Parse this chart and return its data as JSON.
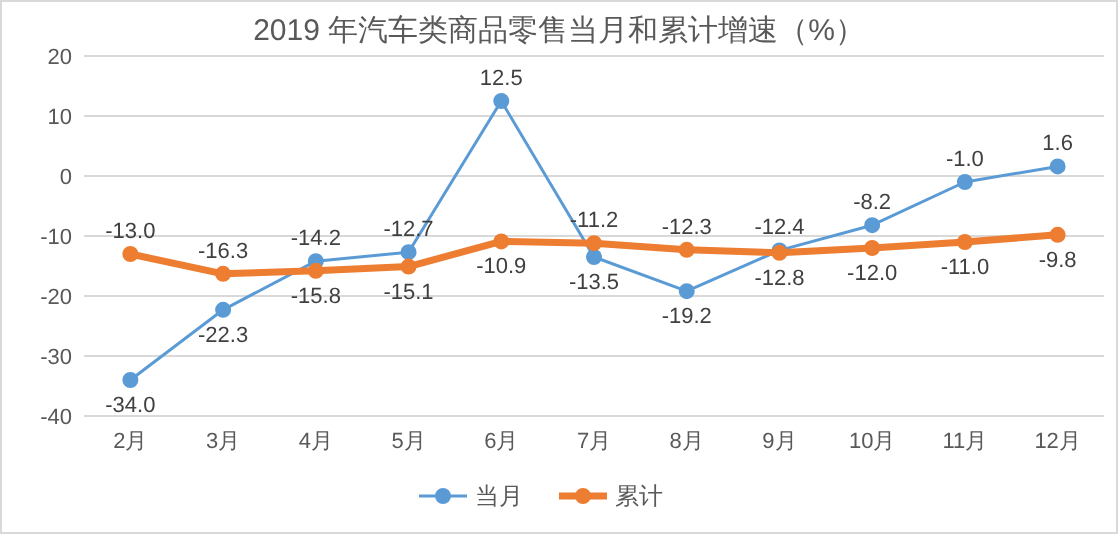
{
  "chart_data": {
    "type": "line",
    "title": "2019 年汽车类商品零售当月和累计增速（%）",
    "categories": [
      "2月",
      "3月",
      "4月",
      "5月",
      "6月",
      "7月",
      "8月",
      "9月",
      "10月",
      "11月",
      "12月"
    ],
    "series": [
      {
        "name": "当月",
        "color": "#5b9bd5",
        "values": [
          -34.0,
          -22.3,
          -14.2,
          -12.7,
          12.5,
          -13.5,
          -19.2,
          -12.4,
          -8.2,
          -1.0,
          1.6
        ],
        "value_labels": [
          "-34.0",
          "-22.3",
          "-14.2",
          "-12.7",
          "12.5",
          "-13.5",
          "-19.2",
          "-12.4",
          "-8.2",
          "-1.0",
          "1.6"
        ]
      },
      {
        "name": "累计",
        "color": "#ed7d31",
        "values": [
          -13.0,
          -16.3,
          -15.8,
          -15.1,
          -10.9,
          -11.2,
          -12.3,
          -12.8,
          -12.0,
          -11.0,
          -9.8
        ],
        "value_labels": [
          "-13.0",
          "-16.3",
          "-15.8",
          "-15.1",
          "-10.9",
          "-11.2",
          "-12.3",
          "-12.8",
          "-12.0",
          "-11.0",
          "-9.8"
        ]
      }
    ],
    "ylim": [
      -40,
      20
    ],
    "yticks": [
      -40,
      -30,
      -20,
      -10,
      0,
      10,
      20
    ],
    "grid": "y",
    "legend": "bottom",
    "marker": "circle",
    "line_style": "solid"
  }
}
